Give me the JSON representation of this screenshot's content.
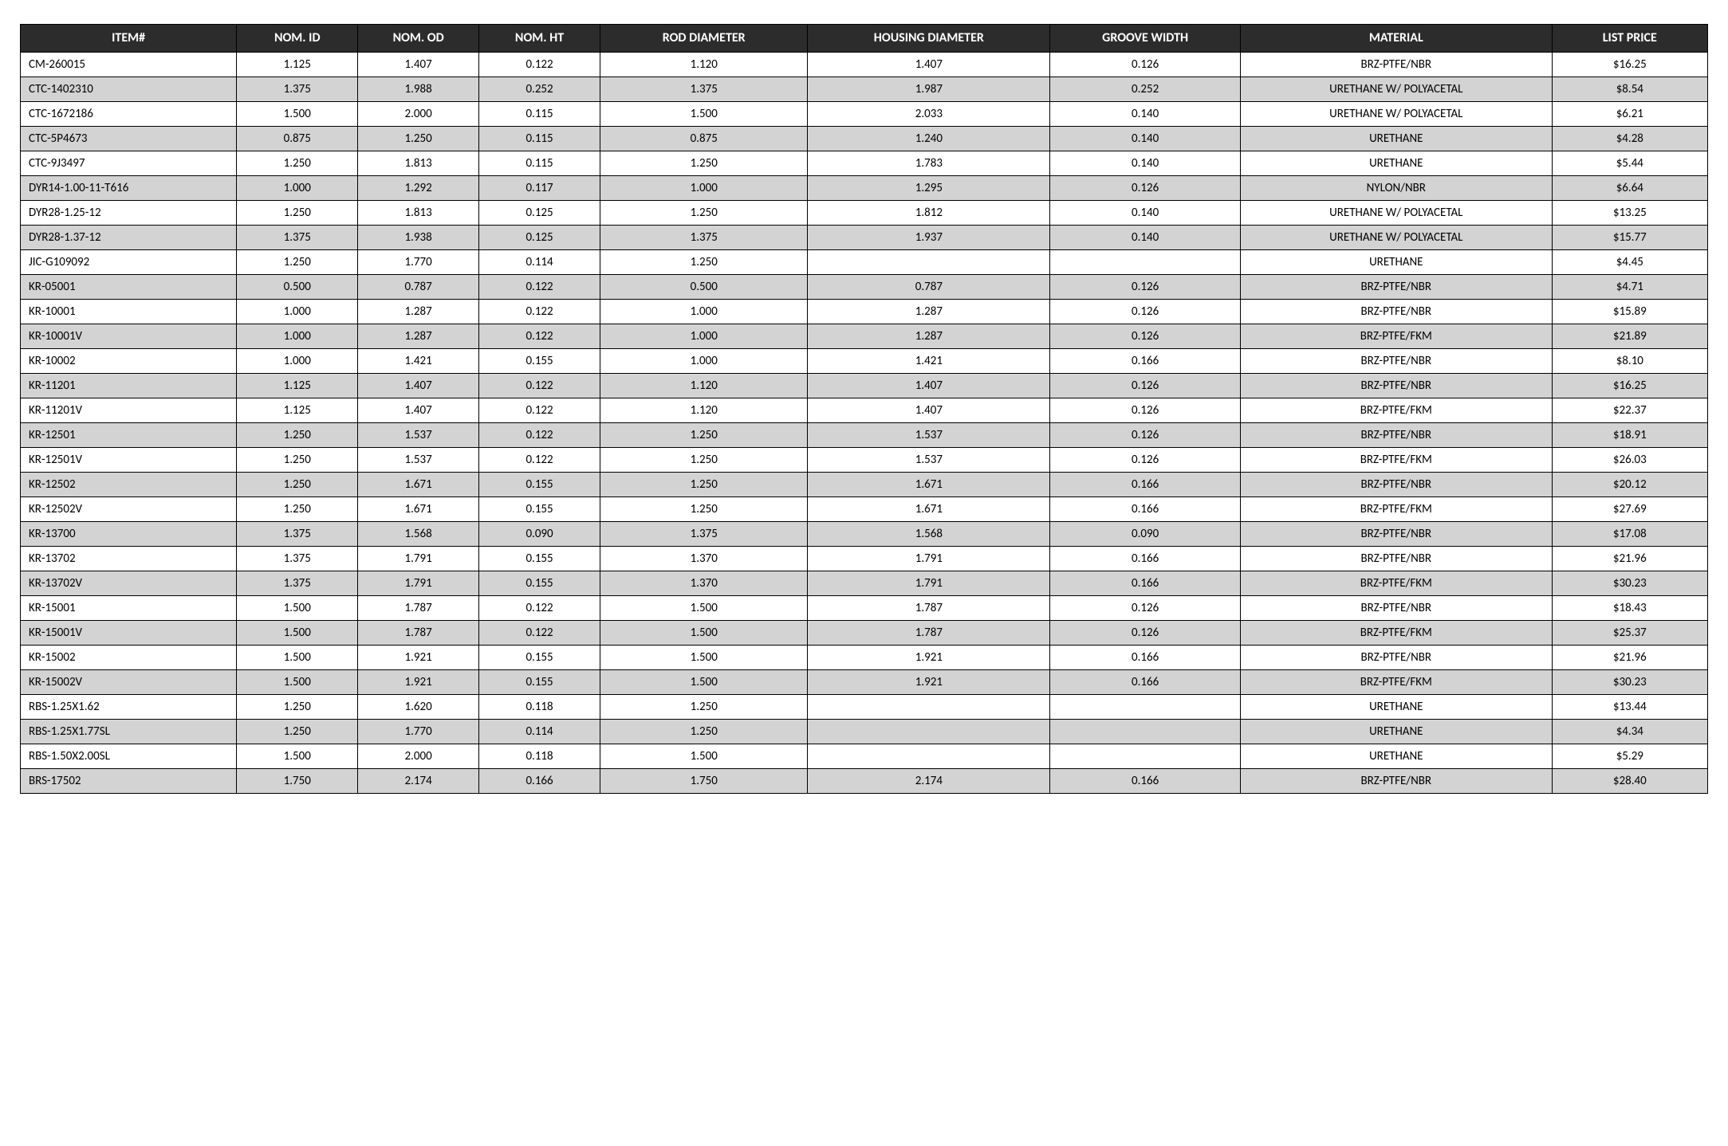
{
  "table": {
    "header_bg": "#2c2c2c",
    "header_fg": "#ffffff",
    "row_odd_bg": "#ffffff",
    "row_even_bg": "#d3d3d3",
    "border_color": "#000000",
    "header_fontsize": 16,
    "cell_fontsize": 15,
    "columns": [
      {
        "label": "ITEM#",
        "align": "left",
        "width_pct": 12.5
      },
      {
        "label": "NOM. ID",
        "align": "center",
        "width_pct": 7
      },
      {
        "label": "NOM. OD",
        "align": "center",
        "width_pct": 7
      },
      {
        "label": "NOM. HT",
        "align": "center",
        "width_pct": 7
      },
      {
        "label": "ROD DIAMETER",
        "align": "center",
        "width_pct": 12
      },
      {
        "label": "HOUSING DIAMETER",
        "align": "center",
        "width_pct": 14
      },
      {
        "label": "GROOVE WIDTH",
        "align": "center",
        "width_pct": 11
      },
      {
        "label": "MATERIAL",
        "align": "center",
        "width_pct": 18
      },
      {
        "label": "LIST PRICE",
        "align": "center",
        "width_pct": 9
      }
    ],
    "rows": [
      [
        "CM-260015",
        "1.125",
        "1.407",
        "0.122",
        "1.120",
        "1.407",
        "0.126",
        "BRZ-PTFE/NBR",
        "$16.25"
      ],
      [
        "CTC-1402310",
        "1.375",
        "1.988",
        "0.252",
        "1.375",
        "1.987",
        "0.252",
        "URETHANE W/ POLYACETAL",
        "$8.54"
      ],
      [
        "CTC-1672186",
        "1.500",
        "2.000",
        "0.115",
        "1.500",
        "2.033",
        "0.140",
        "URETHANE W/ POLYACETAL",
        "$6.21"
      ],
      [
        "CTC-5P4673",
        "0.875",
        "1.250",
        "0.115",
        "0.875",
        "1.240",
        "0.140",
        "URETHANE",
        "$4.28"
      ],
      [
        "CTC-9J3497",
        "1.250",
        "1.813",
        "0.115",
        "1.250",
        "1.783",
        "0.140",
        "URETHANE",
        "$5.44"
      ],
      [
        "DYR14-1.00-11-T616",
        "1.000",
        "1.292",
        "0.117",
        "1.000",
        "1.295",
        "0.126",
        "NYLON/NBR",
        "$6.64"
      ],
      [
        "DYR28-1.25-12",
        "1.250",
        "1.813",
        "0.125",
        "1.250",
        "1.812",
        "0.140",
        "URETHANE W/ POLYACETAL",
        "$13.25"
      ],
      [
        "DYR28-1.37-12",
        "1.375",
        "1.938",
        "0.125",
        "1.375",
        "1.937",
        "0.140",
        "URETHANE W/ POLYACETAL",
        "$15.77"
      ],
      [
        "JIC-G109092",
        "1.250",
        "1.770",
        "0.114",
        "1.250",
        "",
        "",
        "URETHANE",
        "$4.45"
      ],
      [
        "KR-05001",
        "0.500",
        "0.787",
        "0.122",
        "0.500",
        "0.787",
        "0.126",
        "BRZ-PTFE/NBR",
        "$4.71"
      ],
      [
        "KR-10001",
        "1.000",
        "1.287",
        "0.122",
        "1.000",
        "1.287",
        "0.126",
        "BRZ-PTFE/NBR",
        "$15.89"
      ],
      [
        "KR-10001V",
        "1.000",
        "1.287",
        "0.122",
        "1.000",
        "1.287",
        "0.126",
        "BRZ-PTFE/FKM",
        "$21.89"
      ],
      [
        "KR-10002",
        "1.000",
        "1.421",
        "0.155",
        "1.000",
        "1.421",
        "0.166",
        "BRZ-PTFE/NBR",
        "$8.10"
      ],
      [
        "KR-11201",
        "1.125",
        "1.407",
        "0.122",
        "1.120",
        "1.407",
        "0.126",
        "BRZ-PTFE/NBR",
        "$16.25"
      ],
      [
        "KR-11201V",
        "1.125",
        "1.407",
        "0.122",
        "1.120",
        "1.407",
        "0.126",
        "BRZ-PTFE/FKM",
        "$22.37"
      ],
      [
        "KR-12501",
        "1.250",
        "1.537",
        "0.122",
        "1.250",
        "1.537",
        "0.126",
        "BRZ-PTFE/NBR",
        "$18.91"
      ],
      [
        "KR-12501V",
        "1.250",
        "1.537",
        "0.122",
        "1.250",
        "1.537",
        "0.126",
        "BRZ-PTFE/FKM",
        "$26.03"
      ],
      [
        "KR-12502",
        "1.250",
        "1.671",
        "0.155",
        "1.250",
        "1.671",
        "0.166",
        "BRZ-PTFE/NBR",
        "$20.12"
      ],
      [
        "KR-12502V",
        "1.250",
        "1.671",
        "0.155",
        "1.250",
        "1.671",
        "0.166",
        "BRZ-PTFE/FKM",
        "$27.69"
      ],
      [
        "KR-13700",
        "1.375",
        "1.568",
        "0.090",
        "1.375",
        "1.568",
        "0.090",
        "BRZ-PTFE/NBR",
        "$17.08"
      ],
      [
        "KR-13702",
        "1.375",
        "1.791",
        "0.155",
        "1.370",
        "1.791",
        "0.166",
        "BRZ-PTFE/NBR",
        "$21.96"
      ],
      [
        "KR-13702V",
        "1.375",
        "1.791",
        "0.155",
        "1.370",
        "1.791",
        "0.166",
        "BRZ-PTFE/FKM",
        "$30.23"
      ],
      [
        "KR-15001",
        "1.500",
        "1.787",
        "0.122",
        "1.500",
        "1.787",
        "0.126",
        "BRZ-PTFE/NBR",
        "$18.43"
      ],
      [
        "KR-15001V",
        "1.500",
        "1.787",
        "0.122",
        "1.500",
        "1.787",
        "0.126",
        "BRZ-PTFE/FKM",
        "$25.37"
      ],
      [
        "KR-15002",
        "1.500",
        "1.921",
        "0.155",
        "1.500",
        "1.921",
        "0.166",
        "BRZ-PTFE/NBR",
        "$21.96"
      ],
      [
        "KR-15002V",
        "1.500",
        "1.921",
        "0.155",
        "1.500",
        "1.921",
        "0.166",
        "BRZ-PTFE/FKM",
        "$30.23"
      ],
      [
        "RBS-1.25X1.62",
        "1.250",
        "1.620",
        "0.118",
        "1.250",
        "",
        "",
        "URETHANE",
        "$13.44"
      ],
      [
        "RBS-1.25X1.77SL",
        "1.250",
        "1.770",
        "0.114",
        "1.250",
        "",
        "",
        "URETHANE",
        "$4.34"
      ],
      [
        "RBS-1.50X2.00SL",
        "1.500",
        "2.000",
        "0.118",
        "1.500",
        "",
        "",
        "URETHANE",
        "$5.29"
      ],
      [
        "BRS-17502",
        "1.750",
        "2.174",
        "0.166",
        "1.750",
        "2.174",
        "0.166",
        "BRZ-PTFE/NBR",
        "$28.40"
      ]
    ]
  }
}
